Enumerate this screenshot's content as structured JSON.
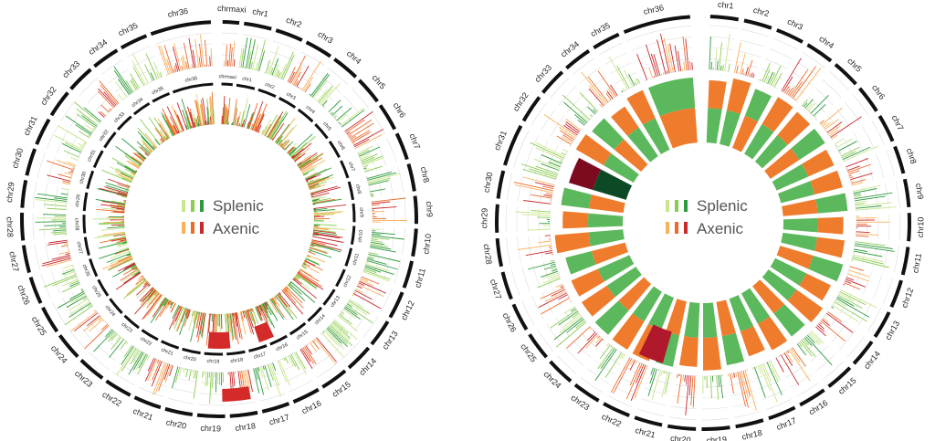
{
  "legend": {
    "items": [
      {
        "label": "Splenic",
        "colors": [
          "#c8e68c",
          "#8ccc55",
          "#2e9a3e"
        ]
      },
      {
        "label": "Axenic",
        "colors": [
          "#f9b15a",
          "#ee6a2c",
          "#c8282e"
        ]
      }
    ]
  },
  "chart_data": [
    {
      "type": "circos",
      "position": "left",
      "chromosomes": [
        "chr1",
        "chr2",
        "chr3",
        "chr4",
        "chr5",
        "chr6",
        "chr7",
        "chr8",
        "chr9",
        "chr10",
        "chr11",
        "chr12",
        "chr13",
        "chr14",
        "chr15",
        "chr16",
        "chr17",
        "chr18",
        "chr19",
        "chr20",
        "chr21",
        "chr22",
        "chr23",
        "chr24",
        "chr25",
        "chr26",
        "chr27",
        "chr28",
        "chr29",
        "chr30",
        "chr31",
        "chr32",
        "chr33",
        "chr34",
        "chr35",
        "chr36"
      ],
      "outer_axis_labels": [
        "chrmaxi",
        "chr1",
        "chr2",
        "chr3",
        "chr4",
        "chr5",
        "chr6",
        "chr7",
        "chr8",
        "chr9",
        "chr10",
        "chr11",
        "chr12",
        "chr13",
        "chr14",
        "chr15",
        "chr16",
        "chr17",
        "chr18",
        "chr19",
        "chr20",
        "chr21",
        "chr22",
        "chr23",
        "chr24",
        "chr25",
        "chr26",
        "chr27",
        "chr28",
        "chr29",
        "chr30",
        "chr31",
        "chr32",
        "chr33",
        "chr34",
        "chr35",
        "chr36"
      ],
      "inner_axis_labels": [
        "chrmaxi",
        "chr1",
        "chr2",
        "chr3",
        "chr4",
        "chr5",
        "chr6",
        "chr7",
        "chr8",
        "chr9",
        "chr10",
        "chr11",
        "chr12",
        "chr13",
        "chr14",
        "chr15",
        "chr16",
        "chr17",
        "chr18",
        "chr19",
        "chr20",
        "chr21",
        "chr22",
        "chr23",
        "chr24",
        "chr25",
        "chr26",
        "chr27",
        "chr28",
        "chr29",
        "chr30",
        "chr31",
        "chr32",
        "chr33",
        "chr34",
        "chr35",
        "chr36"
      ],
      "series": [
        {
          "name": "Splenic"
        },
        {
          "name": "Axenic"
        }
      ]
    },
    {
      "type": "circos",
      "position": "right",
      "outer_axis_labels": [
        "chr1",
        "chr2",
        "chr3",
        "chr4",
        "chr5",
        "chr6",
        "chr7",
        "chr8",
        "chr9",
        "chr10",
        "chr11",
        "chr12",
        "chr13",
        "chr14",
        "chr15",
        "chr16",
        "chr17",
        "chr18",
        "chr19",
        "chr20",
        "chr21",
        "chr22",
        "chr23",
        "chr24",
        "chr25",
        "chr26",
        "chr27",
        "chr28",
        "chr29",
        "chr30",
        "chr31",
        "chr32",
        "chr33",
        "chr34",
        "chr35",
        "chr36"
      ],
      "series": [
        {
          "name": "Splenic"
        },
        {
          "name": "Axenic"
        }
      ]
    }
  ]
}
